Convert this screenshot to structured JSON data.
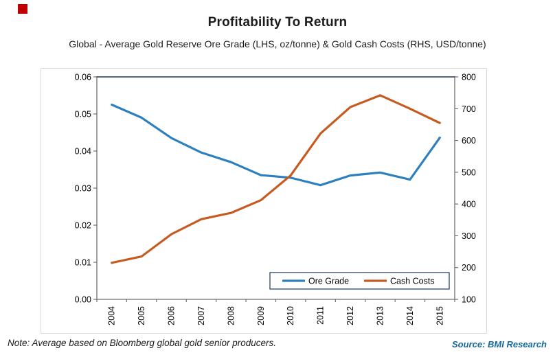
{
  "brand": {
    "logo_color": "#c00000"
  },
  "header": {
    "title": "Profitability To Return",
    "subtitle": "Global - Average Gold Reserve Ore Grade (LHS, oz/tonne) & Gold Cash Costs (RHS, USD/tonne)"
  },
  "footer": {
    "note": "Note: Average based on Bloomberg global gold senior producers.",
    "source": "Source: BMI Research",
    "source_color": "#16699d"
  },
  "chart_data": {
    "type": "line",
    "title": "Profitability To Return",
    "subtitle": "Global - Average Gold Reserve Ore Grade (LHS, oz/tonne) & Gold Cash Costs (RHS, USD/tonne)",
    "categories": [
      "2004",
      "2005",
      "2006",
      "2007",
      "2008",
      "2009",
      "2010",
      "2011",
      "2012",
      "2013",
      "2014",
      "2015"
    ],
    "series": [
      {
        "name": "Ore Grade",
        "axis": "left",
        "color": "#2d80bd",
        "values": [
          0.0525,
          0.049,
          0.0435,
          0.0396,
          0.037,
          0.0335,
          0.0328,
          0.0308,
          0.0334,
          0.0342,
          0.0323,
          0.0436
        ]
      },
      {
        "name": "Cash Costs",
        "axis": "right",
        "color": "#c65b22",
        "values": [
          215,
          235,
          305,
          352,
          372,
          412,
          490,
          622,
          705,
          742,
          700,
          655
        ]
      }
    ],
    "left_axis": {
      "label": "Ore Grade (LHS, oz/tonne)",
      "min": 0,
      "max": 0.06,
      "ticks": [
        "0.00",
        "0.01",
        "0.02",
        "0.03",
        "0.04",
        "0.05",
        "0.06"
      ]
    },
    "right_axis": {
      "label": "Cash Costs (RHS, USD/tonne)",
      "min": 100,
      "max": 800,
      "ticks": [
        "100",
        "200",
        "300",
        "400",
        "500",
        "600",
        "700",
        "800"
      ]
    },
    "legend": {
      "position": "inside-bottom-right",
      "items": [
        "Ore Grade",
        "Cash Costs"
      ]
    },
    "grid": "off",
    "frame_color": "#17375d",
    "axis_color": "#6f6f6f",
    "tick_label_color": "#000000"
  }
}
